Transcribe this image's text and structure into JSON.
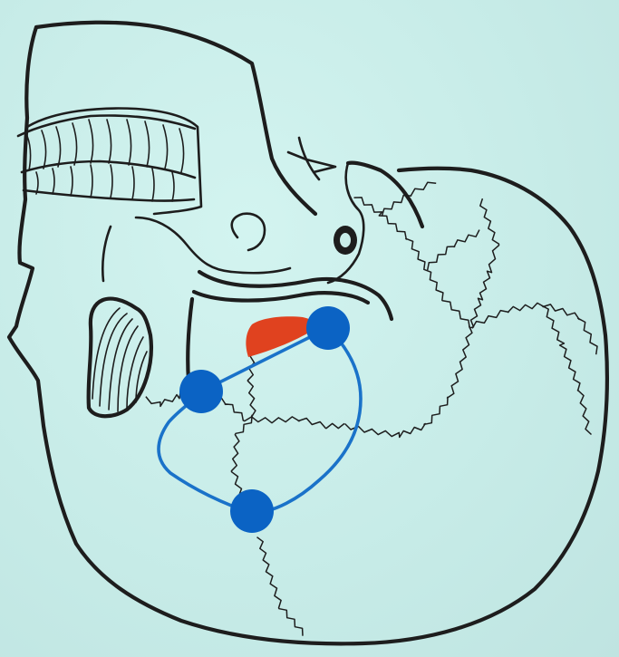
{
  "colors": {
    "background": "#c9ede9",
    "ink": "#1d1d1d",
    "landmark": "#0b63c4",
    "outline": "#1a72c9",
    "highlight": "#e0421f"
  },
  "icons": {
    "skull": "skull-drawing",
    "landmark": "blue-dot",
    "region": "red-wedge"
  }
}
